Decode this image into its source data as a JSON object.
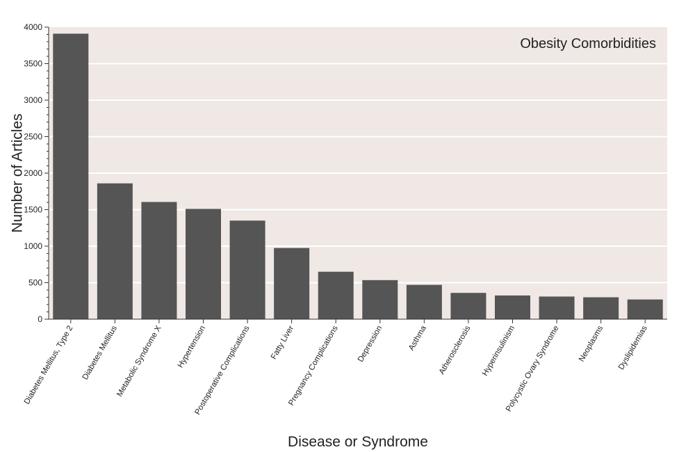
{
  "chart_data": {
    "type": "bar",
    "title": "Obesity Comorbidities",
    "xlabel": "Disease or Syndrome",
    "ylabel": "Number of Articles",
    "ylim": [
      0,
      4000
    ],
    "yticks": [
      0,
      500,
      1000,
      1500,
      2000,
      2500,
      3000,
      3500,
      4000
    ],
    "grid": true,
    "categories": [
      "Diabetes Mellitus, Type 2",
      "Diabetes Mellitus",
      "Metabolic Syndrome X",
      "Hypertension",
      "Postoperative Complications",
      "Fatty Liver",
      "Pregnancy Complications",
      "Depression",
      "Asthma",
      "Atherosclerosis",
      "Hyperinsulinism",
      "Polycystic Ovary Syndrome",
      "Neoplasms",
      "Dyslipidemias"
    ],
    "values": [
      3910,
      1860,
      1605,
      1510,
      1350,
      975,
      650,
      535,
      470,
      360,
      325,
      310,
      300,
      270
    ],
    "colors": {
      "bar": "#555555",
      "plot_background": "#efe8e4",
      "grid": "#ffffff",
      "axis": "#333333"
    }
  }
}
